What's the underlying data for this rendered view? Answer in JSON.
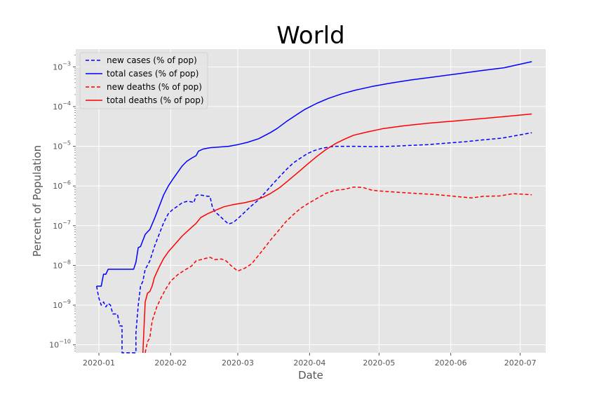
{
  "chart_data": {
    "type": "line",
    "title": "World",
    "xlabel": "Date",
    "ylabel": "Percent of Population",
    "yscale": "log",
    "ylim": [
      6.3e-11,
      0.0028
    ],
    "xlim": [
      "2019-12-22",
      "2020-07-12"
    ],
    "grid": true,
    "legend_position": "top-left",
    "x_ticks": [
      "2020-01",
      "2020-02",
      "2020-03",
      "2020-04",
      "2020-05",
      "2020-06",
      "2020-07"
    ],
    "y_ticks": [
      {
        "value": 1e-10,
        "base": "10",
        "exp": "−10"
      },
      {
        "value": 1e-09,
        "base": "10",
        "exp": "−9"
      },
      {
        "value": 1e-08,
        "base": "10",
        "exp": "−8"
      },
      {
        "value": 1e-07,
        "base": "10",
        "exp": "−7"
      },
      {
        "value": 1e-06,
        "base": "10",
        "exp": "−6"
      },
      {
        "value": 1e-05,
        "base": "10",
        "exp": "−5"
      },
      {
        "value": 0.0001,
        "base": "10",
        "exp": "−4"
      },
      {
        "value": 0.001,
        "base": "10",
        "exp": "−3"
      }
    ],
    "colors": {
      "cases": "#0000ff",
      "deaths": "#ff0000",
      "grid": "#ffffff",
      "plot_bg": "#e5e5e5"
    },
    "series": [
      {
        "name": "new cases (% of pop)",
        "color": "#0000ff",
        "style": "dashed",
        "points": [
          [
            "2019-12-31",
            3e-09
          ],
          [
            "2020-01-01",
            1.5e-09
          ],
          [
            "2020-01-02",
            1e-09
          ],
          [
            "2020-01-03",
            1.2e-09
          ],
          [
            "2020-01-04",
            9e-10
          ],
          [
            "2020-01-05",
            1.1e-09
          ],
          [
            "2020-01-06",
            1e-09
          ],
          [
            "2020-01-07",
            6e-10
          ],
          [
            "2020-01-09",
            6e-10
          ],
          [
            "2020-01-10",
            3e-10
          ],
          [
            "2020-01-11",
            3e-10
          ],
          [
            "2020-01-11",
            6.3e-11
          ],
          [
            "2020-01-17",
            6.3e-11
          ],
          [
            "2020-01-17",
            2e-10
          ],
          [
            "2020-01-18",
            1e-09
          ],
          [
            "2020-01-19",
            3e-09
          ],
          [
            "2020-01-20",
            4e-09
          ],
          [
            "2020-01-21",
            8e-09
          ],
          [
            "2020-01-22",
            1e-08
          ],
          [
            "2020-01-23",
            1.3e-08
          ],
          [
            "2020-01-25",
            3e-08
          ],
          [
            "2020-01-27",
            6e-08
          ],
          [
            "2020-01-29",
            1.2e-07
          ],
          [
            "2020-01-31",
            2e-07
          ],
          [
            "2020-02-02",
            2.6e-07
          ],
          [
            "2020-02-04",
            3.1e-07
          ],
          [
            "2020-02-06",
            3.8e-07
          ],
          [
            "2020-02-08",
            4.1e-07
          ],
          [
            "2020-02-10",
            4e-07
          ],
          [
            "2020-02-11",
            3.8e-07
          ],
          [
            "2020-02-12",
            5.8e-07
          ],
          [
            "2020-02-13",
            6e-07
          ],
          [
            "2020-02-15",
            5.8e-07
          ],
          [
            "2020-02-17",
            5.5e-07
          ],
          [
            "2020-02-18",
            5.5e-07
          ],
          [
            "2020-02-19",
            3e-07
          ],
          [
            "2020-02-20",
            2.3e-07
          ],
          [
            "2020-02-22",
            1.8e-07
          ],
          [
            "2020-02-24",
            1.4e-07
          ],
          [
            "2020-02-26",
            1.1e-07
          ],
          [
            "2020-02-28",
            1.2e-07
          ],
          [
            "2020-03-01",
            1.5e-07
          ],
          [
            "2020-03-04",
            2.2e-07
          ],
          [
            "2020-03-07",
            3.2e-07
          ],
          [
            "2020-03-10",
            4.5e-07
          ],
          [
            "2020-03-13",
            7e-07
          ],
          [
            "2020-03-16",
            1.1e-06
          ],
          [
            "2020-03-19",
            1.7e-06
          ],
          [
            "2020-03-22",
            2.6e-06
          ],
          [
            "2020-03-25",
            3.8e-06
          ],
          [
            "2020-03-28",
            5e-06
          ],
          [
            "2020-03-31",
            6.5e-06
          ],
          [
            "2020-04-03",
            7.8e-06
          ],
          [
            "2020-04-06",
            8.8e-06
          ],
          [
            "2020-04-09",
            9.5e-06
          ],
          [
            "2020-04-12",
            1e-05
          ],
          [
            "2020-04-20",
            1e-05
          ],
          [
            "2020-04-28",
            9.8e-06
          ],
          [
            "2020-05-06",
            1e-05
          ],
          [
            "2020-05-14",
            1.05e-05
          ],
          [
            "2020-05-22",
            1.1e-05
          ],
          [
            "2020-05-30",
            1.2e-05
          ],
          [
            "2020-06-07",
            1.3e-05
          ],
          [
            "2020-06-15",
            1.45e-05
          ],
          [
            "2020-06-23",
            1.6e-05
          ],
          [
            "2020-06-30",
            1.9e-05
          ],
          [
            "2020-07-06",
            2.2e-05
          ]
        ]
      },
      {
        "name": "total cases (% of pop)",
        "color": "#0000ff",
        "style": "solid",
        "points": [
          [
            "2019-12-31",
            3e-09
          ],
          [
            "2020-01-02",
            3e-09
          ],
          [
            "2020-01-03",
            6e-09
          ],
          [
            "2020-01-04",
            6e-09
          ],
          [
            "2020-01-05",
            8e-09
          ],
          [
            "2020-01-16",
            8e-09
          ],
          [
            "2020-01-17",
            1.2e-08
          ],
          [
            "2020-01-18",
            2.8e-08
          ],
          [
            "2020-01-19",
            3e-08
          ],
          [
            "2020-01-21",
            6e-08
          ],
          [
            "2020-01-22",
            7e-08
          ],
          [
            "2020-01-23",
            8e-08
          ],
          [
            "2020-01-25",
            1.5e-07
          ],
          [
            "2020-01-27",
            3e-07
          ],
          [
            "2020-01-29",
            6e-07
          ],
          [
            "2020-01-31",
            1e-06
          ],
          [
            "2020-02-02",
            1.5e-06
          ],
          [
            "2020-02-04",
            2.2e-06
          ],
          [
            "2020-02-06",
            3.2e-06
          ],
          [
            "2020-02-08",
            4.2e-06
          ],
          [
            "2020-02-10",
            5e-06
          ],
          [
            "2020-02-12",
            5.8e-06
          ],
          [
            "2020-02-13",
            7.5e-06
          ],
          [
            "2020-02-15",
            8.5e-06
          ],
          [
            "2020-02-18",
            9.2e-06
          ],
          [
            "2020-02-22",
            9.6e-06
          ],
          [
            "2020-02-26",
            1e-05
          ],
          [
            "2020-03-01",
            1.1e-05
          ],
          [
            "2020-03-05",
            1.25e-05
          ],
          [
            "2020-03-10",
            1.55e-05
          ],
          [
            "2020-03-15",
            2.2e-05
          ],
          [
            "2020-03-18",
            2.8e-05
          ],
          [
            "2020-03-22",
            4.2e-05
          ],
          [
            "2020-03-26",
            6e-05
          ],
          [
            "2020-03-30",
            8.5e-05
          ],
          [
            "2020-04-04",
            0.00012
          ],
          [
            "2020-04-09",
            0.00016
          ],
          [
            "2020-04-15",
            0.00021
          ],
          [
            "2020-04-21",
            0.00026
          ],
          [
            "2020-04-28",
            0.00032
          ],
          [
            "2020-05-06",
            0.00039
          ],
          [
            "2020-05-15",
            0.00047
          ],
          [
            "2020-05-25",
            0.00056
          ],
          [
            "2020-06-04",
            0.00067
          ],
          [
            "2020-06-14",
            0.0008
          ],
          [
            "2020-06-24",
            0.00095
          ],
          [
            "2020-07-06",
            0.00135
          ]
        ]
      },
      {
        "name": "new deaths (% of pop)",
        "color": "#ff0000",
        "style": "dashed",
        "points": [
          [
            "2020-01-21",
            6.3e-11
          ],
          [
            "2020-01-22",
            1.2e-10
          ],
          [
            "2020-01-23",
            1.5e-10
          ],
          [
            "2020-01-24",
            4e-10
          ],
          [
            "2020-01-26",
            9e-10
          ],
          [
            "2020-01-28",
            1.6e-09
          ],
          [
            "2020-01-30",
            2.6e-09
          ],
          [
            "2020-02-01",
            4e-09
          ],
          [
            "2020-02-04",
            5.8e-09
          ],
          [
            "2020-02-07",
            7.6e-09
          ],
          [
            "2020-02-10",
            9.6e-09
          ],
          [
            "2020-02-12",
            1.3e-08
          ],
          [
            "2020-02-15",
            1.45e-08
          ],
          [
            "2020-02-18",
            1.6e-08
          ],
          [
            "2020-02-20",
            1.4e-08
          ],
          [
            "2020-02-23",
            1.45e-08
          ],
          [
            "2020-02-25",
            1.3e-08
          ],
          [
            "2020-02-27",
            1e-08
          ],
          [
            "2020-03-01",
            7.2e-09
          ],
          [
            "2020-03-04",
            8.5e-09
          ],
          [
            "2020-03-07",
            1.1e-08
          ],
          [
            "2020-03-10",
            1.8e-08
          ],
          [
            "2020-03-13",
            3e-08
          ],
          [
            "2020-03-16",
            5e-08
          ],
          [
            "2020-03-19",
            8e-08
          ],
          [
            "2020-03-22",
            1.3e-07
          ],
          [
            "2020-03-25",
            1.9e-07
          ],
          [
            "2020-03-28",
            2.7e-07
          ],
          [
            "2020-03-31",
            3.5e-07
          ],
          [
            "2020-04-04",
            4.8e-07
          ],
          [
            "2020-04-08",
            6.5e-07
          ],
          [
            "2020-04-12",
            7.8e-07
          ],
          [
            "2020-04-16",
            8.2e-07
          ],
          [
            "2020-04-20",
            9.4e-07
          ],
          [
            "2020-04-24",
            9.2e-07
          ],
          [
            "2020-04-28",
            7.8e-07
          ],
          [
            "2020-05-05",
            7.2e-07
          ],
          [
            "2020-05-15",
            6.6e-07
          ],
          [
            "2020-05-25",
            6.1e-07
          ],
          [
            "2020-06-04",
            5.4e-07
          ],
          [
            "2020-06-10",
            5e-07
          ],
          [
            "2020-06-15",
            5.5e-07
          ],
          [
            "2020-06-22",
            5.6e-07
          ],
          [
            "2020-06-28",
            6.4e-07
          ],
          [
            "2020-07-06",
            6e-07
          ]
        ]
      },
      {
        "name": "total deaths (% of pop)",
        "color": "#ff0000",
        "style": "solid",
        "points": [
          [
            "2020-01-20",
            6.3e-11
          ],
          [
            "2020-01-21",
            1.2e-09
          ],
          [
            "2020-01-22",
            2e-09
          ],
          [
            "2020-01-23",
            2.2e-09
          ],
          [
            "2020-01-24",
            3e-09
          ],
          [
            "2020-01-25",
            5e-09
          ],
          [
            "2020-01-27",
            9e-09
          ],
          [
            "2020-01-29",
            1.5e-08
          ],
          [
            "2020-01-31",
            2.2e-08
          ],
          [
            "2020-02-03",
            3.5e-08
          ],
          [
            "2020-02-06",
            5.5e-08
          ],
          [
            "2020-02-09",
            8e-08
          ],
          [
            "2020-02-12",
            1.15e-07
          ],
          [
            "2020-02-14",
            1.6e-07
          ],
          [
            "2020-02-17",
            2e-07
          ],
          [
            "2020-02-20",
            2.4e-07
          ],
          [
            "2020-02-24",
            3e-07
          ],
          [
            "2020-02-28",
            3.4e-07
          ],
          [
            "2020-03-04",
            3.8e-07
          ],
          [
            "2020-03-08",
            4.3e-07
          ],
          [
            "2020-03-12",
            5.2e-07
          ],
          [
            "2020-03-15",
            6.4e-07
          ],
          [
            "2020-03-19",
            9e-07
          ],
          [
            "2020-03-23",
            1.4e-06
          ],
          [
            "2020-03-27",
            2.2e-06
          ],
          [
            "2020-03-31",
            3.5e-06
          ],
          [
            "2020-04-04",
            5.5e-06
          ],
          [
            "2020-04-08",
            8.2e-06
          ],
          [
            "2020-04-12",
            1.15e-05
          ],
          [
            "2020-04-16",
            1.5e-05
          ],
          [
            "2020-04-20",
            1.9e-05
          ],
          [
            "2020-04-26",
            2.3e-05
          ],
          [
            "2020-05-03",
            2.8e-05
          ],
          [
            "2020-05-12",
            3.3e-05
          ],
          [
            "2020-05-22",
            3.8e-05
          ],
          [
            "2020-06-02",
            4.3e-05
          ],
          [
            "2020-06-13",
            4.9e-05
          ],
          [
            "2020-06-24",
            5.6e-05
          ],
          [
            "2020-07-06",
            6.5e-05
          ]
        ]
      }
    ]
  }
}
